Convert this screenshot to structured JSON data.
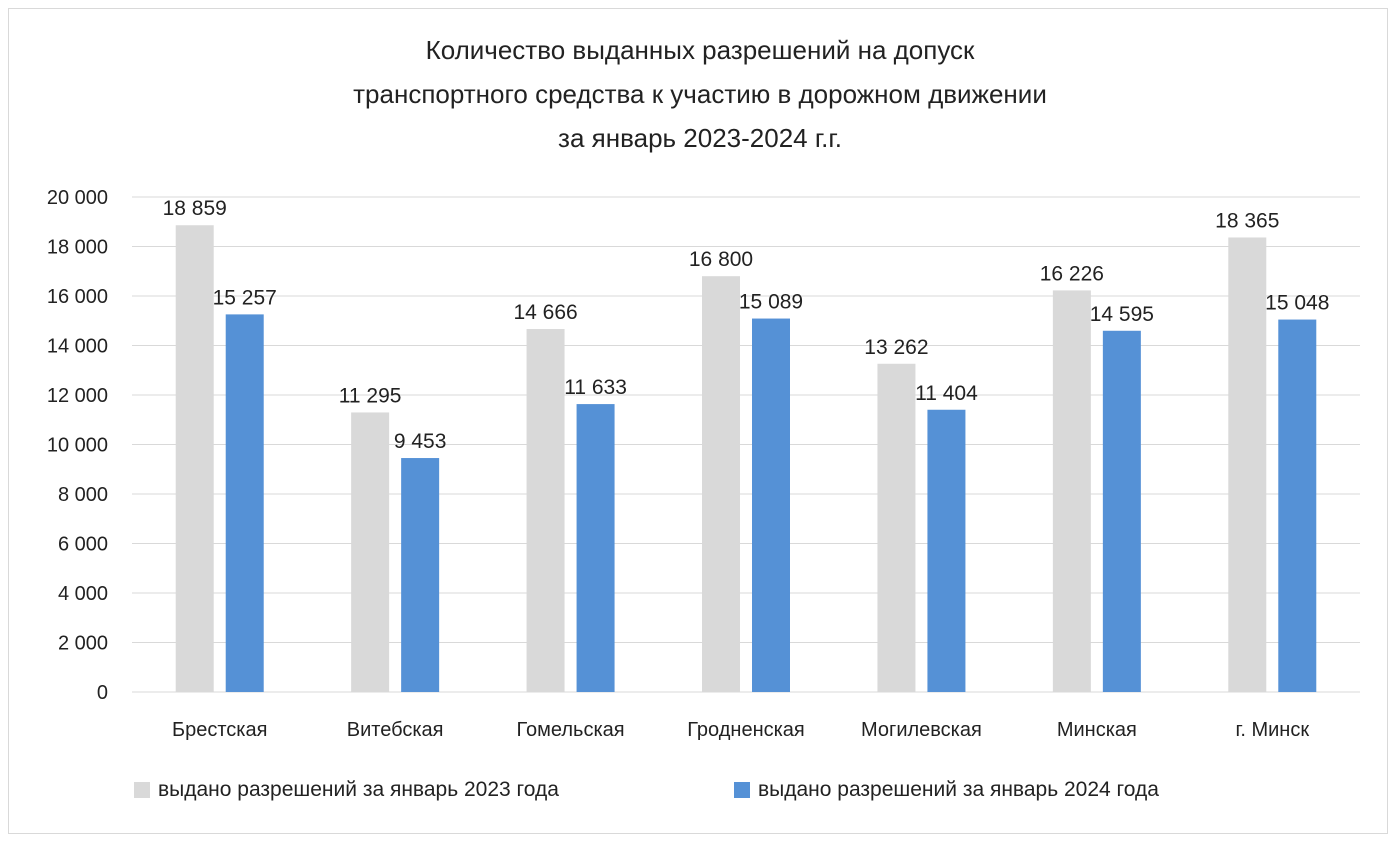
{
  "chart_data": {
    "type": "bar",
    "title_lines": [
      "Количество выданных разрешений на допуск",
      "транспортного средства к участию в дорожном движении",
      "за январь 2023-2024 г.г."
    ],
    "categories": [
      "Брестская",
      "Витебская",
      "Гомельская",
      "Гродненская",
      "Могилевская",
      "Минская",
      "г. Минск"
    ],
    "series": [
      {
        "name": "выдано разрешений за январь 2023 года",
        "color": "#d9d9d9",
        "values": [
          18859,
          11295,
          14666,
          16800,
          13262,
          16226,
          18365
        ],
        "labels": [
          "18 859",
          "11 295",
          "14 666",
          "16 800",
          "13 262",
          "16 226",
          "18 365"
        ]
      },
      {
        "name": "выдано разрешений за январь 2024 года",
        "color": "#5591d6",
        "values": [
          15257,
          9453,
          11633,
          15089,
          11404,
          14595,
          15048
        ],
        "labels": [
          "15 257",
          "9 453",
          "11 633",
          "15 089",
          "11 404",
          "14 595",
          "15 048"
        ]
      }
    ],
    "ylim": [
      0,
      20000
    ],
    "yticks": [
      0,
      2000,
      4000,
      6000,
      8000,
      10000,
      12000,
      14000,
      16000,
      18000,
      20000
    ],
    "ytick_labels": [
      "0",
      "2 000",
      "4 000",
      "6 000",
      "8 000",
      "10 000",
      "12 000",
      "14 000",
      "16 000",
      "18 000",
      "20 000"
    ],
    "grid": true,
    "legend_position": "bottom"
  }
}
